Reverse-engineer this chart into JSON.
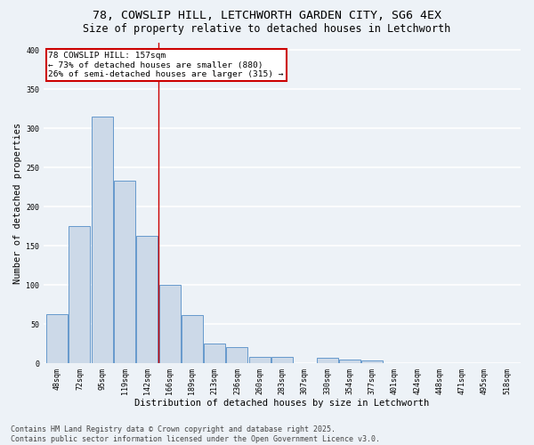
{
  "title_line1": "78, COWSLIP HILL, LETCHWORTH GARDEN CITY, SG6 4EX",
  "title_line2": "Size of property relative to detached houses in Letchworth",
  "xlabel": "Distribution of detached houses by size in Letchworth",
  "ylabel": "Number of detached properties",
  "categories": [
    "48sqm",
    "72sqm",
    "95sqm",
    "119sqm",
    "142sqm",
    "166sqm",
    "189sqm",
    "213sqm",
    "236sqm",
    "260sqm",
    "283sqm",
    "307sqm",
    "330sqm",
    "354sqm",
    "377sqm",
    "401sqm",
    "424sqm",
    "448sqm",
    "471sqm",
    "495sqm",
    "518sqm"
  ],
  "values": [
    63,
    175,
    315,
    233,
    163,
    101,
    62,
    26,
    21,
    9,
    9,
    0,
    7,
    5,
    4,
    0,
    0,
    0,
    0,
    0,
    0
  ],
  "bar_color": "#ccd9e8",
  "bar_edge_color": "#6699cc",
  "annotation_line1": "78 COWSLIP HILL: 157sqm",
  "annotation_line2": "← 73% of detached houses are smaller (880)",
  "annotation_line3": "26% of semi-detached houses are larger (315) →",
  "annotation_box_color": "#ffffff",
  "annotation_box_edge": "#cc0000",
  "vline_color": "#cc0000",
  "vline_x_index": 4.5,
  "ylim": [
    0,
    410
  ],
  "yticks": [
    0,
    50,
    100,
    150,
    200,
    250,
    300,
    350,
    400
  ],
  "footer_line1": "Contains HM Land Registry data © Crown copyright and database right 2025.",
  "footer_line2": "Contains public sector information licensed under the Open Government Licence v3.0.",
  "background_color": "#edf2f7",
  "plot_background_color": "#edf2f7",
  "grid_color": "#ffffff",
  "title_fontsize": 9.5,
  "subtitle_fontsize": 8.5,
  "axis_label_fontsize": 7.5,
  "tick_fontsize": 6,
  "annotation_fontsize": 6.8,
  "footer_fontsize": 6
}
